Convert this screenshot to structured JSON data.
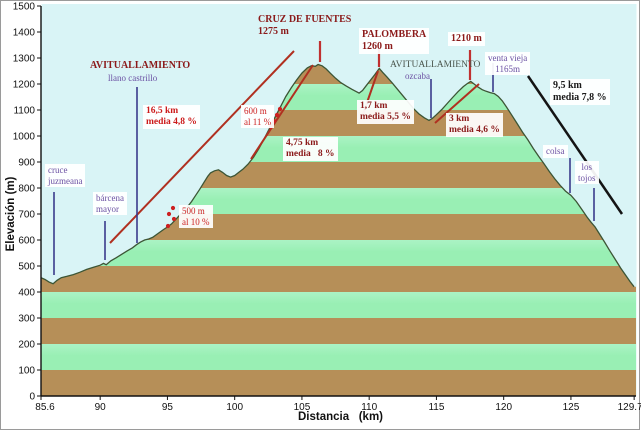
{
  "chart_data": {
    "type": "area",
    "xlabel": "Distancia   (km)",
    "ylabel": "Elevación (m)",
    "x_range": [
      85.6,
      129.7
    ],
    "y_range": [
      0,
      1500
    ],
    "x_ticks": [
      "85.6",
      "90",
      "95",
      "100",
      "105",
      "110",
      "115",
      "120",
      "125",
      "129.7"
    ],
    "x_tick_km": [
      85.6,
      90,
      95,
      100,
      105,
      110,
      115,
      120,
      125,
      129.7
    ],
    "y_ticks": [
      0,
      100,
      200,
      300,
      400,
      500,
      600,
      700,
      800,
      900,
      1000,
      1100,
      1200,
      1300,
      1400,
      1500
    ],
    "summits": [
      {
        "name": "CRUZ DE FUENTES",
        "elevation_m": 1275,
        "km": 106.2
      },
      {
        "name": "PALOMBERA",
        "elevation_m": 1260,
        "km": 110.75
      },
      {
        "name": "1210 m",
        "elevation_m": 1210,
        "km": 117.55
      }
    ],
    "waypoints": [
      {
        "name": "cruce juzmeana",
        "km": 87.0
      },
      {
        "name": "bárcena mayor",
        "km": 90.3
      },
      {
        "name": "AVITUALLAMIENTO llano castrillo",
        "km": 92.7
      },
      {
        "name": "AVITUALLAMIENTO ozcaba",
        "km": 114.5
      },
      {
        "name": "venta vieja 1165m",
        "km": 119.2
      },
      {
        "name": "colsa",
        "km": 124.9
      },
      {
        "name": "los tojos",
        "km": 126.7
      }
    ],
    "gradient_segments": [
      {
        "label": "16,5 km media 4,8 %"
      },
      {
        "label": "500 m al 10 %"
      },
      {
        "label": "600 m al 11 %"
      },
      {
        "label": "4,75 km media 8 %"
      },
      {
        "label": "1,7 km media 5,5 %"
      },
      {
        "label": "3 km media 4,6 %"
      },
      {
        "label": "9,5 km media 7,8 %"
      }
    ],
    "profile": [
      [
        85.6,
        455
      ],
      [
        85.9,
        448
      ],
      [
        86.2,
        438
      ],
      [
        86.5,
        432
      ],
      [
        86.8,
        445
      ],
      [
        87.1,
        455
      ],
      [
        87.5,
        460
      ],
      [
        88.0,
        467
      ],
      [
        88.5,
        476
      ],
      [
        89.0,
        487
      ],
      [
        89.5,
        495
      ],
      [
        90.0,
        503
      ],
      [
        90.25,
        510
      ],
      [
        90.45,
        505
      ],
      [
        90.8,
        520
      ],
      [
        91.2,
        532
      ],
      [
        91.6,
        545
      ],
      [
        92.0,
        558
      ],
      [
        92.4,
        570
      ],
      [
        92.7,
        582
      ],
      [
        93.0,
        592
      ],
      [
        93.3,
        600
      ],
      [
        93.6,
        604
      ],
      [
        93.9,
        610
      ],
      [
        94.3,
        625
      ],
      [
        94.7,
        640
      ],
      [
        95.0,
        650
      ],
      [
        95.3,
        662
      ],
      [
        95.6,
        678
      ],
      [
        95.9,
        695
      ],
      [
        96.2,
        710
      ],
      [
        96.5,
        728
      ],
      [
        96.8,
        748
      ],
      [
        97.1,
        772
      ],
      [
        97.4,
        795
      ],
      [
        97.7,
        820
      ],
      [
        98.0,
        845
      ],
      [
        98.2,
        858
      ],
      [
        98.5,
        866
      ],
      [
        98.8,
        870
      ],
      [
        99.1,
        860
      ],
      [
        99.4,
        848
      ],
      [
        99.7,
        842
      ],
      [
        100.0,
        848
      ],
      [
        100.3,
        860
      ],
      [
        100.6,
        872
      ],
      [
        101.0,
        892
      ],
      [
        101.4,
        918
      ],
      [
        101.8,
        952
      ],
      [
        102.2,
        990
      ],
      [
        102.6,
        1030
      ],
      [
        103.0,
        1072
      ],
      [
        103.4,
        1112
      ],
      [
        103.8,
        1152
      ],
      [
        104.2,
        1185
      ],
      [
        104.6,
        1215
      ],
      [
        105.0,
        1242
      ],
      [
        105.4,
        1262
      ],
      [
        105.7,
        1270
      ],
      [
        106.0,
        1268
      ],
      [
        106.2,
        1275
      ],
      [
        106.5,
        1270
      ],
      [
        106.8,
        1258
      ],
      [
        107.1,
        1242
      ],
      [
        107.5,
        1222
      ],
      [
        107.9,
        1205
      ],
      [
        108.3,
        1192
      ],
      [
        108.7,
        1180
      ],
      [
        109.0,
        1172
      ],
      [
        109.25,
        1165
      ],
      [
        109.5,
        1175
      ],
      [
        109.8,
        1195
      ],
      [
        110.1,
        1215
      ],
      [
        110.4,
        1235
      ],
      [
        110.75,
        1260
      ],
      [
        111.0,
        1245
      ],
      [
        111.3,
        1228
      ],
      [
        111.7,
        1205
      ],
      [
        112.1,
        1180
      ],
      [
        112.5,
        1155
      ],
      [
        112.9,
        1130
      ],
      [
        113.3,
        1105
      ],
      [
        113.7,
        1085
      ],
      [
        114.1,
        1070
      ],
      [
        114.45,
        1060
      ],
      [
        114.7,
        1068
      ],
      [
        115.0,
        1082
      ],
      [
        115.4,
        1102
      ],
      [
        115.8,
        1125
      ],
      [
        116.2,
        1148
      ],
      [
        116.6,
        1170
      ],
      [
        117.0,
        1190
      ],
      [
        117.3,
        1202
      ],
      [
        117.55,
        1210
      ],
      [
        117.8,
        1200
      ],
      [
        118.1,
        1188
      ],
      [
        118.4,
        1178
      ],
      [
        118.7,
        1172
      ],
      [
        119.0,
        1167
      ],
      [
        119.3,
        1163
      ],
      [
        119.6,
        1152
      ],
      [
        119.9,
        1135
      ],
      [
        120.2,
        1112
      ],
      [
        120.6,
        1080
      ],
      [
        121.0,
        1048
      ],
      [
        121.4,
        1015
      ],
      [
        121.8,
        985
      ],
      [
        122.2,
        952
      ],
      [
        122.6,
        922
      ],
      [
        123.0,
        893
      ],
      [
        123.4,
        863
      ],
      [
        123.8,
        835
      ],
      [
        124.2,
        810
      ],
      [
        124.6,
        788
      ],
      [
        125.0,
        772
      ],
      [
        125.4,
        748
      ],
      [
        125.8,
        718
      ],
      [
        126.2,
        688
      ],
      [
        126.5,
        668
      ],
      [
        126.8,
        650
      ],
      [
        127.1,
        625
      ],
      [
        127.5,
        592
      ],
      [
        127.9,
        558
      ],
      [
        128.3,
        525
      ],
      [
        128.7,
        492
      ],
      [
        129.1,
        462
      ],
      [
        129.4,
        440
      ],
      [
        129.7,
        420
      ]
    ],
    "annotations": [
      {
        "id": "cruce-juzmeana",
        "lines": [
          "cruce",
          "juzmeana"
        ],
        "cls": "purple",
        "bg": true,
        "x": 44,
        "y": 163
      },
      {
        "id": "barcena-mayor",
        "lines": [
          "bárcena",
          "mayor"
        ],
        "cls": "purple",
        "bg": true,
        "x": 92,
        "y": 191
      },
      {
        "id": "avituallamiento-llano",
        "lines": [
          "AVITUALLAMIENTO"
        ],
        "cls": "darkred-bold",
        "bg": false,
        "x": 89,
        "y": 59,
        "size": 10
      },
      {
        "id": "llano-castrillo",
        "lines": [
          "llano castrillo"
        ],
        "cls": "purple",
        "bg": false,
        "x": 107,
        "y": 72
      },
      {
        "id": "grade-16-5km",
        "lines": [
          "16,5 km",
          "media 4,8 %"
        ],
        "cls": "red-bold",
        "bg": true,
        "x": 142,
        "y": 104
      },
      {
        "id": "grade-500m",
        "lines": [
          "500 m",
          "al 10 %"
        ],
        "cls": "red",
        "bg": true,
        "x": 178,
        "y": 204
      },
      {
        "id": "grade-600m",
        "lines": [
          "600 m",
          "al 11 %"
        ],
        "cls": "red",
        "bg": true,
        "x": 240,
        "y": 104
      },
      {
        "id": "grade-4-75km",
        "lines": [
          "4,75 km",
          "media   8 %"
        ],
        "cls": "darkred-bold",
        "bg": true,
        "x": 282,
        "y": 136
      },
      {
        "id": "summit-cruz-de-fuentes",
        "lines": [
          "CRUZ DE FUENTES",
          "1275 m"
        ],
        "cls": "darkred-bold",
        "bg": false,
        "x": 257,
        "y": 13,
        "size": 10
      },
      {
        "id": "summit-palombera",
        "lines": [
          "PALOMBERA",
          "1260 m"
        ],
        "cls": "darkred-bold",
        "bg": true,
        "x": 358,
        "y": 27,
        "size": 10
      },
      {
        "id": "grade-1-7km",
        "lines": [
          "1,7 km",
          "media 5,5 %"
        ],
        "cls": "darkred-bold",
        "bg": true,
        "x": 356,
        "y": 99
      },
      {
        "id": "avituallamiento-ozcaba",
        "lines": [
          "AVITUALLAMIENTO"
        ],
        "cls": "gray",
        "bg": false,
        "x": 389,
        "y": 59
      },
      {
        "id": "ozcaba",
        "lines": [
          "ozcaba"
        ],
        "cls": "purple",
        "bg": false,
        "x": 404,
        "y": 70
      },
      {
        "id": "summit-1210",
        "lines": [
          "1210 m"
        ],
        "cls": "darkred-bold",
        "bg": true,
        "x": 447,
        "y": 31,
        "size": 10
      },
      {
        "id": "venta-vieja",
        "lines": [
          "venta vieja",
          "1165m"
        ],
        "cls": "purple",
        "bg": true,
        "x": 484,
        "y": 51,
        "align": "center"
      },
      {
        "id": "grade-3km",
        "lines": [
          "3 km",
          "media 4,6 %"
        ],
        "cls": "darkred-bold",
        "bg": true,
        "x": 445,
        "y": 112
      },
      {
        "id": "grade-9-5km",
        "lines": [
          "9,5 km",
          "media 7,8 %"
        ],
        "cls": "black-bold",
        "bg": true,
        "x": 549,
        "y": 78
      },
      {
        "id": "colsa",
        "lines": [
          "colsa"
        ],
        "cls": "purple",
        "bg": true,
        "x": 542,
        "y": 144
      },
      {
        "id": "los-tojos",
        "lines": [
          "los",
          "tojos"
        ],
        "cls": "purple",
        "bg": true,
        "x": 574,
        "y": 160,
        "align": "center"
      }
    ],
    "waypoint_marker_lines": [
      {
        "name": "cruce-juzmeana-marker",
        "x": 53,
        "y1": 191,
        "y2": 274
      },
      {
        "name": "barcena-mayor-marker",
        "x": 104,
        "y1": 220,
        "y2": 259
      },
      {
        "name": "llano-castrillo-marker",
        "x": 136,
        "y1": 86,
        "y2": 242
      },
      {
        "name": "ozcaba-marker",
        "x": 430,
        "y1": 78,
        "y2": 117
      },
      {
        "name": "venta-vieja-marker",
        "x": 492,
        "y1": 62,
        "y2": 91
      },
      {
        "name": "colsa-marker",
        "x": 569,
        "y1": 157,
        "y2": 192
      },
      {
        "name": "los-tojos-marker",
        "x": 593,
        "y1": 187,
        "y2": 220
      }
    ],
    "summit_marker_lines": [
      {
        "name": "cruz-marker",
        "x": 319,
        "y1": 40,
        "y2": 61
      },
      {
        "name": "palombera-marker",
        "x": 378,
        "y1": 46,
        "y2": 66
      },
      {
        "name": "marker-1210",
        "x": 469,
        "y1": 49,
        "y2": 79
      }
    ],
    "slope_lines": [
      {
        "name": "climb-16-5km-line",
        "x1": 109,
        "y1": 242,
        "x2": 293,
        "y2": 50,
        "color": "red",
        "w": 2
      },
      {
        "name": "climb-4-75km-line",
        "x1": 250,
        "y1": 158,
        "x2": 312,
        "y2": 64,
        "color": "red",
        "w": 2
      },
      {
        "name": "climb-1-7km-line",
        "x1": 361,
        "y1": 116,
        "x2": 377,
        "y2": 70,
        "color": "red",
        "w": 2
      },
      {
        "name": "climb-3km-line",
        "x1": 434,
        "y1": 122,
        "x2": 478,
        "y2": 83,
        "color": "red",
        "w": 2
      },
      {
        "name": "descent-9-5km-line",
        "x1": 527,
        "y1": 75,
        "x2": 621,
        "y2": 213,
        "color": "black",
        "w": 2.5
      }
    ],
    "dot_clusters": [
      {
        "name": "dots-500m",
        "pts": [
          [
            172,
            207
          ],
          [
            168,
            213
          ],
          [
            173,
            218
          ],
          [
            167,
            225
          ]
        ]
      },
      {
        "name": "dots-600m",
        "pts": [
          [
            279,
            108
          ],
          [
            276,
            114
          ],
          [
            273,
            120
          ],
          [
            270,
            126
          ]
        ]
      }
    ],
    "colors": {
      "sky": "#d9f4f6",
      "band_brown": "#b68f58",
      "band_green": "#99efb4",
      "band_green_light": "#abf3c5",
      "outline": "#3c5535",
      "navy": "#3a3a8c",
      "slope_red": "#b03020",
      "slope_black": "#141414",
      "marker_red": "#c03030",
      "dot_red": "#cc2020",
      "axis": "#111111"
    }
  }
}
